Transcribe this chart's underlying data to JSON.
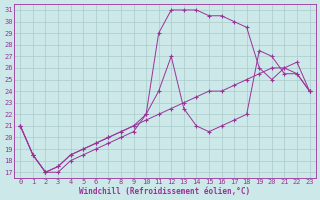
{
  "xlabel": "Windchill (Refroidissement éolien,°C)",
  "bg_color": "#cce8e8",
  "line_color": "#993399",
  "grid_color": "#aacccc",
  "xlim": [
    -0.5,
    23.5
  ],
  "ylim": [
    16.5,
    31.5
  ],
  "yticks": [
    17,
    18,
    19,
    20,
    21,
    22,
    23,
    24,
    25,
    26,
    27,
    28,
    29,
    30,
    31
  ],
  "xticks": [
    0,
    1,
    2,
    3,
    4,
    5,
    6,
    7,
    8,
    9,
    10,
    11,
    12,
    13,
    14,
    15,
    16,
    17,
    18,
    19,
    20,
    21,
    22,
    23
  ],
  "line1_x": [
    0,
    1,
    2,
    3,
    4,
    5,
    6,
    7,
    8,
    9,
    10,
    11,
    12,
    13,
    14,
    15,
    16,
    17,
    18,
    19,
    20,
    21,
    22,
    23
  ],
  "line1_y": [
    21,
    18.5,
    17,
    17,
    18,
    18.5,
    19,
    19.5,
    20,
    20.5,
    22,
    29,
    31,
    31,
    31,
    30.5,
    30.5,
    30,
    29.5,
    26,
    25,
    26,
    25.5,
    24
  ],
  "line2_x": [
    0,
    1,
    2,
    3,
    4,
    5,
    6,
    7,
    8,
    9,
    10,
    11,
    12,
    13,
    14,
    15,
    16,
    17,
    18,
    19,
    20,
    21,
    22,
    23
  ],
  "line2_y": [
    21,
    18.5,
    17,
    17.5,
    18.5,
    19,
    19.5,
    20,
    20.5,
    21,
    22,
    24,
    27,
    22.5,
    21,
    20.5,
    21,
    21.5,
    22,
    27.5,
    27,
    25.5,
    25.5,
    24
  ],
  "line3_x": [
    0,
    1,
    2,
    3,
    4,
    5,
    6,
    7,
    8,
    9,
    10,
    11,
    12,
    13,
    14,
    15,
    16,
    17,
    18,
    19,
    20,
    21,
    22,
    23
  ],
  "line3_y": [
    21,
    18.5,
    17,
    17.5,
    18.5,
    19,
    19.5,
    20,
    20.5,
    21,
    21.5,
    22,
    22.5,
    23,
    23.5,
    24,
    24,
    24.5,
    25,
    25.5,
    26,
    26,
    26.5,
    24
  ]
}
